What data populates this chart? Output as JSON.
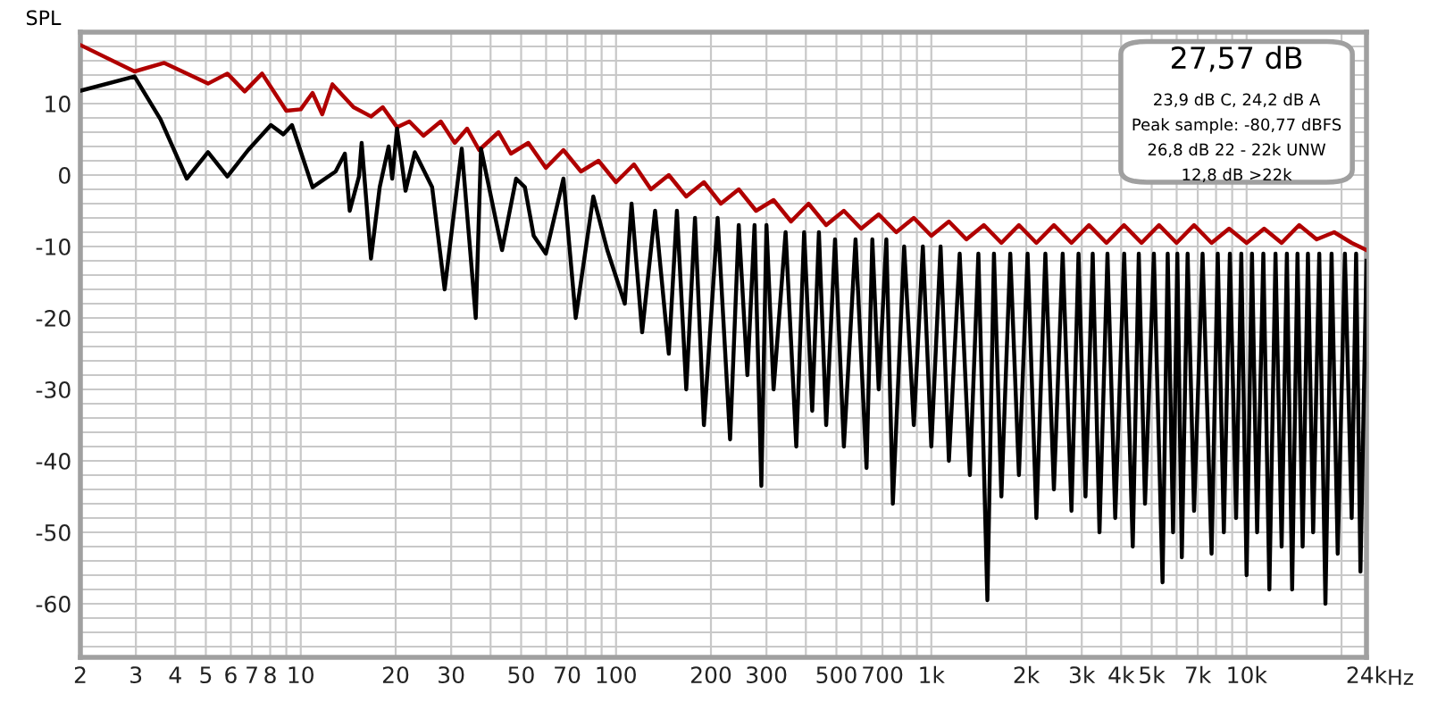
{
  "chart_data": {
    "type": "line",
    "ylabel": "SPL",
    "log": "x",
    "grid": true,
    "legend": false,
    "marker": "none",
    "line_style": "solid",
    "xlim": [
      2,
      24000
    ],
    "ylim": [
      -67.5,
      20
    ],
    "xticks": [
      {
        "value": 2,
        "label": "2"
      },
      {
        "value": 3,
        "label": "3"
      },
      {
        "value": 4,
        "label": "4"
      },
      {
        "value": 5,
        "label": "5"
      },
      {
        "value": 6,
        "label": "6"
      },
      {
        "value": 7,
        "label": "7"
      },
      {
        "value": 8,
        "label": "8"
      },
      {
        "value": 9,
        "label": null
      },
      {
        "value": 10,
        "label": "10"
      },
      {
        "value": 20,
        "label": "20"
      },
      {
        "value": 30,
        "label": "30"
      },
      {
        "value": 40,
        "label": null
      },
      {
        "value": 50,
        "label": "50"
      },
      {
        "value": 60,
        "label": null
      },
      {
        "value": 70,
        "label": "70"
      },
      {
        "value": 80,
        "label": null
      },
      {
        "value": 90,
        "label": null
      },
      {
        "value": 100,
        "label": "100"
      },
      {
        "value": 200,
        "label": "200"
      },
      {
        "value": 300,
        "label": "300"
      },
      {
        "value": 400,
        "label": null
      },
      {
        "value": 500,
        "label": "500"
      },
      {
        "value": 600,
        "label": null
      },
      {
        "value": 700,
        "label": "700"
      },
      {
        "value": 800,
        "label": null
      },
      {
        "value": 900,
        "label": null
      },
      {
        "value": 1000,
        "label": "1k"
      },
      {
        "value": 2000,
        "label": "2k"
      },
      {
        "value": 3000,
        "label": "3k"
      },
      {
        "value": 4000,
        "label": "4k"
      },
      {
        "value": 5000,
        "label": "5k"
      },
      {
        "value": 6000,
        "label": null
      },
      {
        "value": 7000,
        "label": "7k"
      },
      {
        "value": 8000,
        "label": null
      },
      {
        "value": 9000,
        "label": null
      },
      {
        "value": 10000,
        "label": "10k"
      },
      {
        "value": 20000,
        "label": null
      },
      {
        "value": 24000,
        "label": "24k"
      }
    ],
    "xlabel": "Hz",
    "yticks": [
      {
        "value": 18,
        "label": null
      },
      {
        "value": 16,
        "label": null
      },
      {
        "value": 14,
        "label": null
      },
      {
        "value": 12,
        "label": null
      },
      10,
      {
        "value": 8,
        "label": null
      },
      {
        "value": 6,
        "label": null
      },
      {
        "value": 4,
        "label": null
      },
      {
        "value": 2,
        "label": null
      },
      0,
      {
        "value": -2,
        "label": null
      },
      {
        "value": -4,
        "label": null
      },
      {
        "value": -6,
        "label": null
      },
      {
        "value": -8,
        "label": null
      },
      -10,
      {
        "value": -12,
        "label": null
      },
      {
        "value": -14,
        "label": null
      },
      {
        "value": -16,
        "label": null
      },
      {
        "value": -18,
        "label": null
      },
      -20,
      {
        "value": -22,
        "label": null
      },
      {
        "value": -24,
        "label": null
      },
      {
        "value": -26,
        "label": null
      },
      {
        "value": -28,
        "label": null
      },
      -30,
      {
        "value": -32,
        "label": null
      },
      {
        "value": -34,
        "label": null
      },
      {
        "value": -36,
        "label": null
      },
      {
        "value": -38,
        "label": null
      },
      -40,
      {
        "value": -42,
        "label": null
      },
      {
        "value": -44,
        "label": null
      },
      {
        "value": -46,
        "label": null
      },
      {
        "value": -48,
        "label": null
      },
      -50,
      {
        "value": -52,
        "label": null
      },
      {
        "value": -54,
        "label": null
      },
      {
        "value": -56,
        "label": null
      },
      {
        "value": -58,
        "label": null
      },
      -60,
      {
        "value": -62,
        "label": null
      },
      {
        "value": -64,
        "label": null
      },
      {
        "value": -66,
        "label": null
      }
    ],
    "annotations": [
      "27,57 dB",
      "23,9 dB C, 24,2 dB A",
      "Peak sample: -80,77 dBFS",
      "26,8 dB 22 - 22k UNW",
      "12,8 dB >22k"
    ],
    "series": [
      {
        "color": "#b00000",
        "x": [
          2,
          2.97,
          3.69,
          5.08,
          5.85,
          6.64,
          7.54,
          9,
          10,
          10.9,
          11.7,
          12.6,
          14.7,
          16.7,
          18.2,
          20.2,
          22.1,
          24.5,
          27.8,
          30.8,
          33.7,
          36.8,
          42.4,
          46.4,
          52.7,
          59.9,
          68.1,
          77.4,
          88,
          100,
          114,
          129,
          147,
          167,
          190,
          215,
          245,
          278,
          316,
          359,
          408,
          464,
          528,
          599,
          681,
          774,
          880,
          1000,
          1137,
          1292,
          1468,
          1668,
          1896,
          2154,
          2448,
          2783,
          3162,
          3594,
          4084,
          4642,
          5275,
          5995,
          6813,
          7743,
          8799,
          10000,
          11365,
          12915,
          14678,
          16681,
          18957,
          21544,
          24000
        ],
        "values": [
          18.2,
          14.5,
          15.7,
          12.8,
          14.2,
          11.7,
          14.2,
          9,
          9.2,
          11.5,
          8.5,
          12.7,
          9.5,
          8.2,
          9.5,
          6.7,
          7.5,
          5.5,
          7.5,
          4.5,
          6.5,
          3.5,
          6,
          3,
          4.5,
          1,
          3.5,
          0.5,
          2,
          -1,
          1.5,
          -2,
          0,
          -3,
          -1,
          -4,
          -2,
          -5,
          -3.5,
          -6.5,
          -4,
          -7,
          -5,
          -7.5,
          -5.5,
          -8,
          -6,
          -8.5,
          -6.5,
          -9,
          -7,
          -9.5,
          -7,
          -9.5,
          -7,
          -9.5,
          -7,
          -9.5,
          -7,
          -9.5,
          -7,
          -9.5,
          -7,
          -9.5,
          -7.5,
          -9.5,
          -7.5,
          -9.5,
          -7,
          -9,
          -8,
          -9.5,
          -10.5
        ]
      },
      {
        "color": "#000000",
        "x": [
          2,
          2.97,
          3.59,
          4.35,
          5.08,
          5.85,
          6.81,
          8.04,
          8.8,
          9.38,
          10.9,
          12.9,
          13.8,
          14.3,
          15.3,
          15.6,
          16.7,
          17.8,
          19,
          19.5,
          20.2,
          21.5,
          23,
          26.1,
          28.6,
          32.4,
          35.9,
          37.3,
          43.5,
          48.2,
          51.4,
          54.8,
          59.9,
          68.1,
          74.5,
          84.7,
          93.8,
          106.6,
          112,
          121,
          133,
          147,
          156,
          167,
          178,
          190,
          210,
          230,
          245,
          261,
          275,
          289,
          300,
          316,
          345,
          373,
          395,
          419,
          440,
          464,
          495,
          528,
          575,
          623,
          650,
          681,
          720,
          755,
          820,
          880,
          940,
          1000,
          1070,
          1137,
          1230,
          1325,
          1410,
          1506,
          1580,
          1668,
          1780,
          1896,
          2020,
          2154,
          2300,
          2448,
          2610,
          2783,
          2930,
          3083,
          3250,
          3415,
          3620,
          3831,
          4090,
          4354,
          4550,
          4762,
          5080,
          5412,
          5620,
          5845,
          6030,
          6230,
          6500,
          6813,
          7250,
          7743,
          8100,
          8468,
          8850,
          9261,
          9620,
          10000,
          10400,
          10798,
          11300,
          11810,
          12350,
          12915,
          13420,
          13946,
          14500,
          15056,
          15650,
          16258,
          17000,
          17783,
          18600,
          19453,
          20500,
          21544,
          22250,
          22966,
          24000
        ],
        "values": [
          11.8,
          13.8,
          7.8,
          -0.5,
          3.2,
          -0.2,
          3.5,
          7,
          5.7,
          7,
          -1.7,
          0.5,
          3,
          -5,
          -0.2,
          4.5,
          -11.7,
          -1.7,
          4,
          -0.5,
          6.5,
          -2.2,
          3.2,
          -1.7,
          -16,
          3.7,
          -20,
          3.7,
          -10.5,
          -0.5,
          -1.7,
          -8.5,
          -11,
          -0.5,
          -20,
          -3,
          -10.5,
          -18,
          -4,
          -22,
          -5,
          -25,
          -5,
          -30,
          -6,
          -35,
          -6,
          -37,
          -7,
          -28,
          -7,
          -43.5,
          -7,
          -30,
          -8,
          -38,
          -8,
          -33,
          -8,
          -35,
          -9,
          -38,
          -9,
          -41,
          -9,
          -30,
          -9,
          -46,
          -10,
          -35,
          -10,
          -38,
          -10,
          -40,
          -11,
          -42,
          -11,
          -59.5,
          -11,
          -45,
          -11,
          -42,
          -11,
          -48,
          -11,
          -44,
          -11,
          -47,
          -11,
          -45,
          -11,
          -50,
          -11,
          -48,
          -11,
          -52,
          -11,
          -46,
          -11,
          -57,
          -11,
          -50,
          -11,
          -53.5,
          -11,
          -47,
          -11,
          -53,
          -11,
          -50,
          -11,
          -48,
          -11,
          -56,
          -11,
          -50,
          -11,
          -58,
          -11,
          -52,
          -11,
          -58,
          -11,
          -52,
          -11,
          -50,
          -11,
          -60,
          -11,
          -53,
          -11,
          -48,
          -11,
          -55.5,
          -12
        ]
      }
    ]
  }
}
